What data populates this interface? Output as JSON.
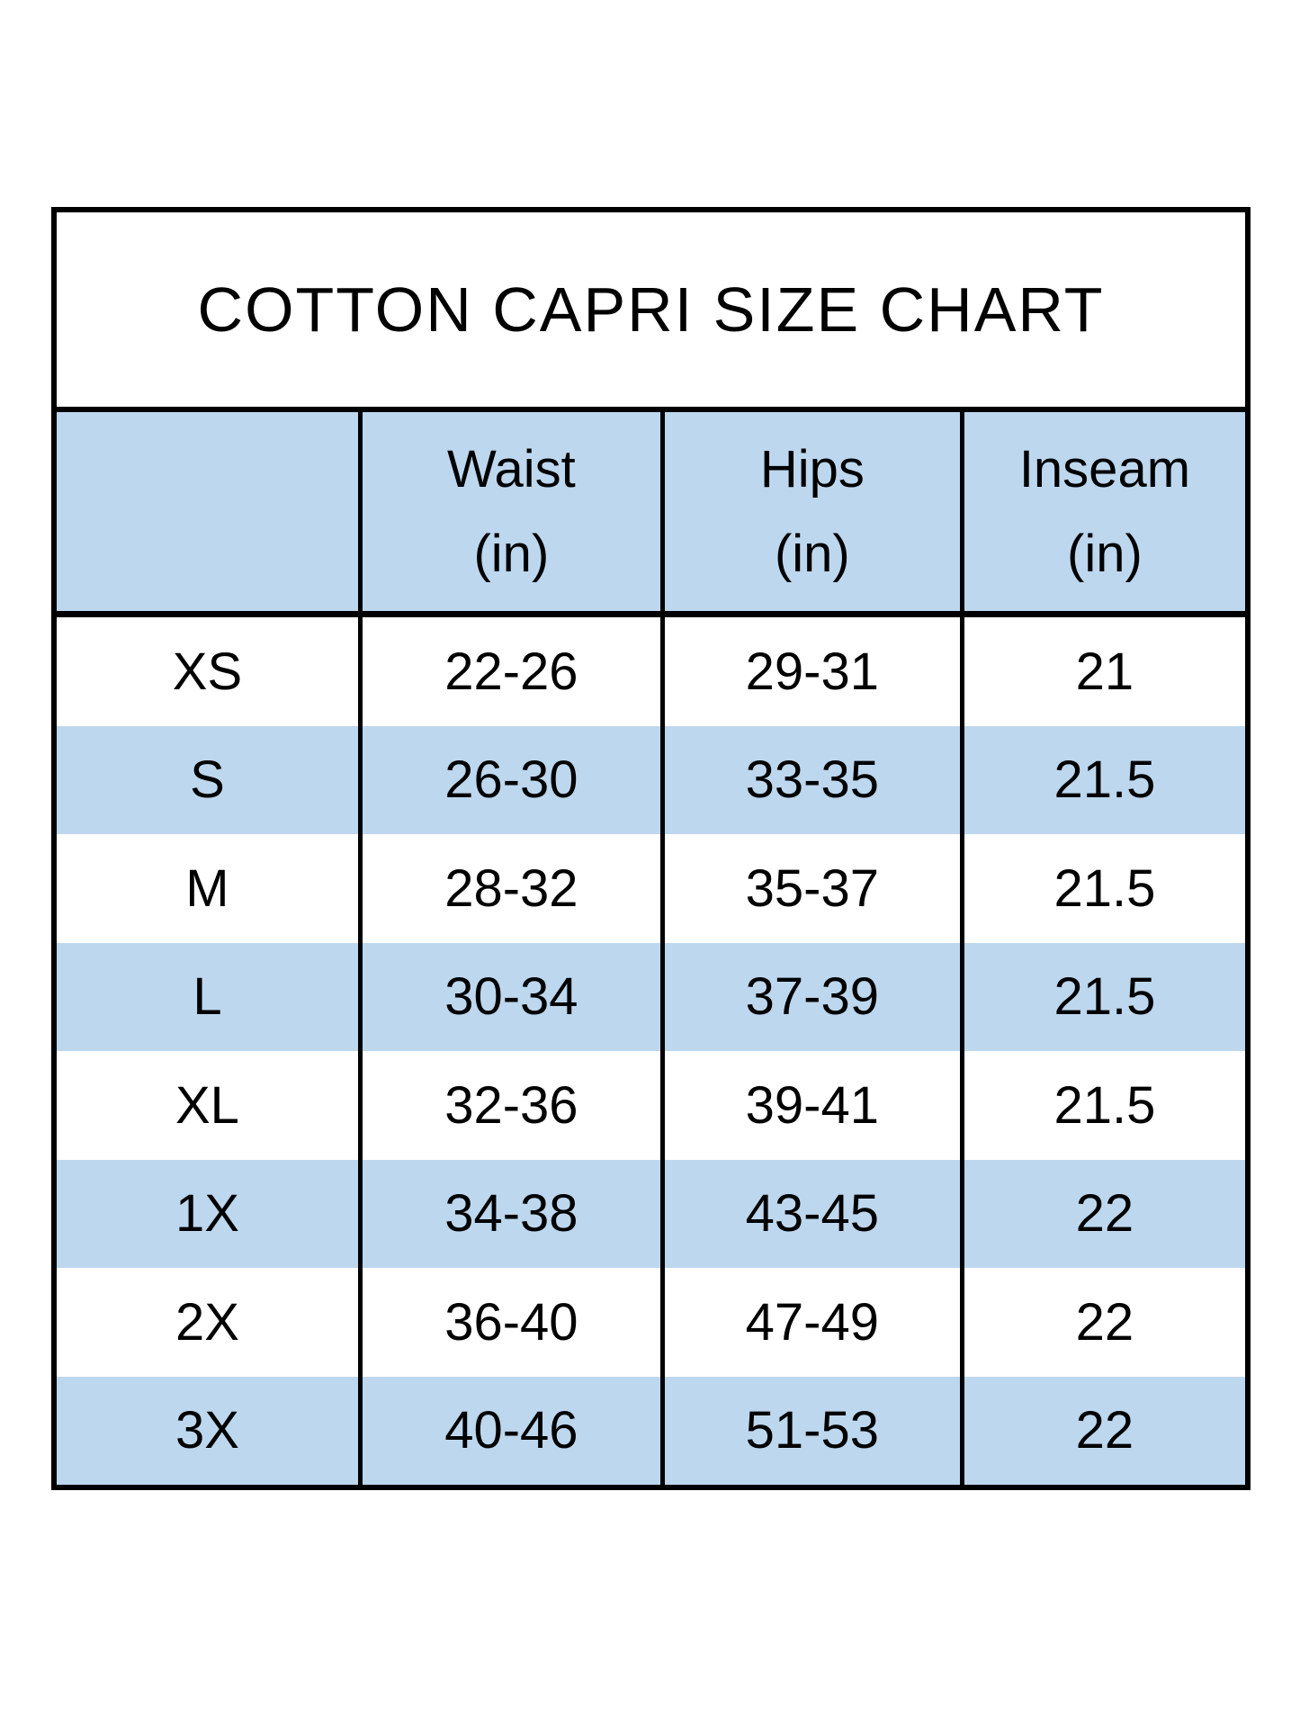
{
  "title": "COTTON CAPRI SIZE CHART",
  "header": {
    "size_label": "",
    "waist": {
      "label": "Waist",
      "unit": "(in)"
    },
    "hips": {
      "label": "Hips",
      "unit": "(in)"
    },
    "inseam": {
      "label": "Inseam",
      "unit": "(in)"
    }
  },
  "rows": [
    {
      "size": "XS",
      "waist": "22-26",
      "hips": "29-31",
      "inseam": "21"
    },
    {
      "size": "S",
      "waist": "26-30",
      "hips": "33-35",
      "inseam": "21.5"
    },
    {
      "size": "M",
      "waist": "28-32",
      "hips": "35-37",
      "inseam": "21.5"
    },
    {
      "size": "L",
      "waist": "30-34",
      "hips": "37-39",
      "inseam": "21.5"
    },
    {
      "size": "XL",
      "waist": "32-36",
      "hips": "39-41",
      "inseam": "21.5"
    },
    {
      "size": "1X",
      "waist": "34-38",
      "hips": "43-45",
      "inseam": "22"
    },
    {
      "size": "2X",
      "waist": "36-40",
      "hips": "47-49",
      "inseam": "22"
    },
    {
      "size": "3X",
      "waist": "40-46",
      "hips": "51-53",
      "inseam": "22"
    }
  ],
  "colors": {
    "stripe_blue": "#BDD7EE",
    "border_black": "#000000",
    "text": "#000000",
    "page_background": "#FFFFFF"
  },
  "chart_data": {
    "type": "table",
    "title": "COTTON CAPRI SIZE CHART",
    "columns": [
      "",
      "Waist (in)",
      "Hips (in)",
      "Inseam (in)"
    ],
    "rows": [
      [
        "XS",
        "22-26",
        "29-31",
        "21"
      ],
      [
        "S",
        "26-30",
        "33-35",
        "21.5"
      ],
      [
        "M",
        "28-32",
        "35-37",
        "21.5"
      ],
      [
        "L",
        "30-34",
        "37-39",
        "21.5"
      ],
      [
        "XL",
        "32-36",
        "39-41",
        "21.5"
      ],
      [
        "1X",
        "34-38",
        "43-45",
        "22"
      ],
      [
        "2X",
        "36-40",
        "47-49",
        "22"
      ],
      [
        "3X",
        "40-46",
        "51-53",
        "22"
      ]
    ],
    "layout": {
      "row_striping": "alternating white and light blue starting white at XS",
      "grid": "vertical column dividers only; thick outer border; no horizontal lines between data rows"
    }
  }
}
